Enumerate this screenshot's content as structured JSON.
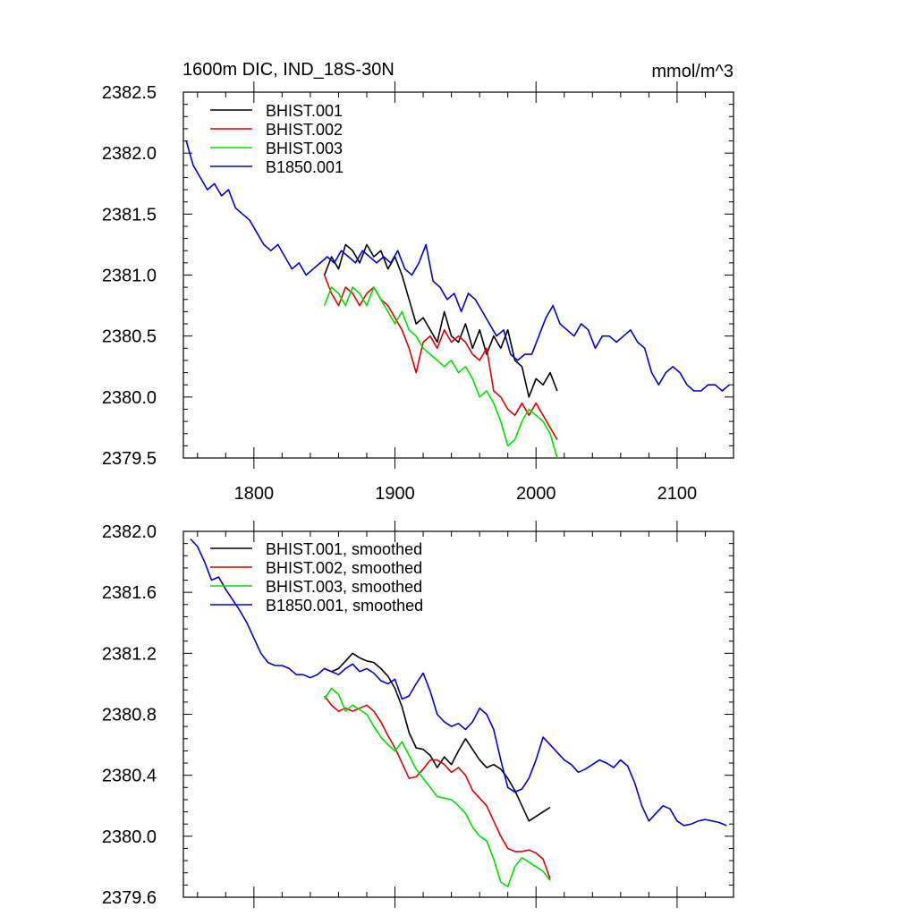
{
  "colors": {
    "BHIST.001": "#000000",
    "BHIST.002": "#e00000",
    "BHIST.003": "#00e000",
    "B1850.001": "#0000d0"
  },
  "chart_data": [
    {
      "type": "line",
      "title": "1600m DIC, IND_18S-30N",
      "units": "mmol/m^3",
      "xlim": [
        1750,
        2140
      ],
      "ylim": [
        2379.5,
        2382.5
      ],
      "xticks": [
        1800,
        1900,
        2000,
        2100
      ],
      "yticks": [
        2379.5,
        2380.0,
        2380.5,
        2381.0,
        2381.5,
        2382.0,
        2382.5
      ],
      "ytick_labels": [
        "2379.5",
        "2380.0",
        "2380.5",
        "2381.0",
        "2381.5",
        "2382.0",
        "2382.5"
      ],
      "xtick_labels": [
        "1800",
        "1900",
        "2000",
        "2100"
      ],
      "legend": "top-left",
      "grid": false,
      "series": [
        {
          "name": "BHIST.001",
          "x": [
            1850,
            1855,
            1860,
            1865,
            1870,
            1875,
            1880,
            1885,
            1890,
            1895,
            1900,
            1905,
            1910,
            1915,
            1920,
            1925,
            1930,
            1935,
            1940,
            1945,
            1950,
            1955,
            1960,
            1965,
            1970,
            1975,
            1980,
            1985,
            1990,
            1995,
            2000,
            2005,
            2010,
            2015
          ],
          "y": [
            2381.0,
            2381.15,
            2381.05,
            2381.25,
            2381.2,
            2381.1,
            2381.25,
            2381.15,
            2381.2,
            2381.05,
            2381.15,
            2381.0,
            2380.8,
            2380.6,
            2380.65,
            2380.55,
            2380.45,
            2380.7,
            2380.5,
            2380.45,
            2380.6,
            2380.4,
            2380.55,
            2380.35,
            2380.5,
            2380.4,
            2380.55,
            2380.3,
            2380.25,
            2380.0,
            2380.15,
            2380.1,
            2380.2,
            2380.05
          ]
        },
        {
          "name": "BHIST.002",
          "x": [
            1850,
            1855,
            1860,
            1865,
            1870,
            1875,
            1880,
            1885,
            1890,
            1895,
            1900,
            1905,
            1910,
            1915,
            1920,
            1925,
            1930,
            1935,
            1940,
            1945,
            1950,
            1955,
            1960,
            1965,
            1970,
            1975,
            1980,
            1985,
            1990,
            1995,
            2000,
            2005,
            2010,
            2015
          ],
          "y": [
            2381.0,
            2380.85,
            2380.75,
            2380.9,
            2380.85,
            2380.75,
            2380.85,
            2380.9,
            2380.8,
            2380.75,
            2380.65,
            2380.55,
            2380.4,
            2380.2,
            2380.45,
            2380.5,
            2380.4,
            2380.55,
            2380.45,
            2380.5,
            2380.45,
            2380.35,
            2380.3,
            2380.4,
            2380.05,
            2380.0,
            2379.9,
            2379.85,
            2379.95,
            2379.85,
            2379.95,
            2379.85,
            2379.75,
            2379.65
          ]
        },
        {
          "name": "BHIST.003",
          "x": [
            1850,
            1855,
            1860,
            1865,
            1870,
            1875,
            1880,
            1885,
            1890,
            1895,
            1900,
            1905,
            1910,
            1915,
            1920,
            1925,
            1930,
            1935,
            1940,
            1945,
            1950,
            1955,
            1960,
            1965,
            1970,
            1975,
            1980,
            1985,
            1990,
            1995,
            2000,
            2005,
            2010,
            2015
          ],
          "y": [
            2380.75,
            2380.9,
            2380.85,
            2380.75,
            2380.9,
            2380.85,
            2380.75,
            2380.9,
            2380.8,
            2380.7,
            2380.6,
            2380.7,
            2380.55,
            2380.5,
            2380.4,
            2380.35,
            2380.3,
            2380.25,
            2380.3,
            2380.2,
            2380.25,
            2380.15,
            2380.0,
            2380.05,
            2379.95,
            2379.8,
            2379.6,
            2379.65,
            2379.8,
            2379.9,
            2379.85,
            2379.8,
            2379.7,
            2379.5
          ]
        },
        {
          "name": "B1850.001",
          "x": [
            1752,
            1757,
            1762,
            1767,
            1772,
            1777,
            1782,
            1787,
            1792,
            1797,
            1802,
            1807,
            1812,
            1817,
            1822,
            1827,
            1832,
            1837,
            1842,
            1847,
            1852,
            1857,
            1862,
            1867,
            1872,
            1877,
            1882,
            1887,
            1892,
            1897,
            1902,
            1907,
            1912,
            1917,
            1922,
            1927,
            1932,
            1937,
            1942,
            1947,
            1952,
            1957,
            1962,
            1967,
            1972,
            1977,
            1982,
            1987,
            1992,
            1997,
            2002,
            2007,
            2012,
            2017,
            2022,
            2027,
            2032,
            2037,
            2042,
            2047,
            2052,
            2057,
            2062,
            2067,
            2072,
            2077,
            2082,
            2087,
            2092,
            2097,
            2102,
            2107,
            2112,
            2117,
            2122,
            2127,
            2132,
            2137
          ],
          "y": [
            2382.1,
            2381.9,
            2381.8,
            2381.7,
            2381.75,
            2381.65,
            2381.7,
            2381.55,
            2381.5,
            2381.45,
            2381.35,
            2381.25,
            2381.2,
            2381.25,
            2381.15,
            2381.05,
            2381.1,
            2381.0,
            2381.05,
            2381.1,
            2381.15,
            2381.1,
            2381.2,
            2381.15,
            2381.1,
            2381.2,
            2381.15,
            2381.1,
            2381.15,
            2381.1,
            2381.2,
            2381.05,
            2381.0,
            2381.1,
            2381.25,
            2380.95,
            2380.9,
            2380.8,
            2380.85,
            2380.7,
            2380.85,
            2380.8,
            2380.7,
            2380.6,
            2380.5,
            2380.55,
            2380.35,
            2380.3,
            2380.35,
            2380.35,
            2380.5,
            2380.65,
            2380.75,
            2380.6,
            2380.55,
            2380.5,
            2380.6,
            2380.55,
            2380.4,
            2380.5,
            2380.5,
            2380.45,
            2380.5,
            2380.55,
            2380.45,
            2380.4,
            2380.2,
            2380.1,
            2380.2,
            2380.25,
            2380.2,
            2380.1,
            2380.05,
            2380.05,
            2380.1,
            2380.1,
            2380.05,
            2380.1
          ]
        }
      ]
    },
    {
      "type": "line",
      "xlim": [
        1750,
        2140
      ],
      "ylim": [
        2379.6,
        2382.0
      ],
      "xticks": [
        1800,
        1900,
        2000,
        2100
      ],
      "yticks": [
        2379.6,
        2380.0,
        2380.4,
        2380.8,
        2381.2,
        2381.6,
        2382.0
      ],
      "ytick_labels": [
        "2379.6",
        "2380.0",
        "2380.4",
        "2380.8",
        "2381.2",
        "2381.6",
        "2382.0"
      ],
      "legend": "top-left",
      "grid": false,
      "series": [
        {
          "name": "BHIST.001, smoothed",
          "x": [
            1850,
            1855,
            1860,
            1865,
            1870,
            1875,
            1880,
            1885,
            1890,
            1895,
            1900,
            1905,
            1910,
            1915,
            1920,
            1925,
            1930,
            1935,
            1940,
            1945,
            1950,
            1955,
            1960,
            1965,
            1970,
            1975,
            1980,
            1985,
            1990,
            1995,
            2000,
            2005,
            2010
          ],
          "y": [
            2381.1,
            2381.08,
            2381.1,
            2381.15,
            2381.2,
            2381.17,
            2381.15,
            2381.14,
            2381.1,
            2381.05,
            2380.97,
            2380.85,
            2380.68,
            2380.58,
            2380.57,
            2380.53,
            2380.45,
            2380.52,
            2380.47,
            2380.56,
            2380.64,
            2380.57,
            2380.5,
            2380.45,
            2380.47,
            2380.44,
            2380.38,
            2380.3,
            2380.2,
            2380.1,
            2380.13,
            2380.16,
            2380.19
          ]
        },
        {
          "name": "BHIST.002, smoothed",
          "x": [
            1850,
            1855,
            1860,
            1865,
            1870,
            1875,
            1880,
            1885,
            1890,
            1895,
            1900,
            1905,
            1910,
            1915,
            1920,
            1925,
            1930,
            1935,
            1940,
            1945,
            1950,
            1955,
            1960,
            1965,
            1970,
            1975,
            1980,
            1985,
            1990,
            1995,
            2000,
            2005,
            2010
          ],
          "y": [
            2380.92,
            2380.86,
            2380.82,
            2380.84,
            2380.82,
            2380.84,
            2380.86,
            2380.82,
            2380.75,
            2380.66,
            2380.58,
            2380.48,
            2380.38,
            2380.39,
            2380.44,
            2380.5,
            2380.5,
            2380.47,
            2380.42,
            2380.45,
            2380.4,
            2380.3,
            2380.25,
            2380.2,
            2380.1,
            2380.0,
            2379.92,
            2379.9,
            2379.9,
            2379.91,
            2379.89,
            2379.85,
            2379.72
          ]
        },
        {
          "name": "BHIST.003, smoothed",
          "x": [
            1850,
            1855,
            1860,
            1865,
            1870,
            1875,
            1880,
            1885,
            1890,
            1895,
            1900,
            1905,
            1910,
            1915,
            1920,
            1925,
            1930,
            1935,
            1940,
            1945,
            1950,
            1955,
            1960,
            1965,
            1970,
            1975,
            1980,
            1985,
            1990,
            1995,
            2000,
            2005,
            2010
          ],
          "y": [
            2380.9,
            2380.97,
            2380.93,
            2380.82,
            2380.86,
            2380.83,
            2380.8,
            2380.72,
            2380.65,
            2380.6,
            2380.56,
            2380.62,
            2380.53,
            2380.44,
            2380.38,
            2380.32,
            2380.26,
            2380.25,
            2380.24,
            2380.2,
            2380.15,
            2380.06,
            2380.0,
            2379.97,
            2379.85,
            2379.7,
            2379.67,
            2379.8,
            2379.86,
            2379.83,
            2379.8,
            2379.77,
            2379.71
          ]
        },
        {
          "name": "B1850.001, smoothed",
          "x": [
            1755,
            1760,
            1765,
            1770,
            1775,
            1780,
            1785,
            1790,
            1795,
            1800,
            1805,
            1810,
            1815,
            1820,
            1825,
            1830,
            1835,
            1840,
            1845,
            1850,
            1855,
            1860,
            1865,
            1870,
            1875,
            1880,
            1885,
            1890,
            1895,
            1900,
            1905,
            1910,
            1915,
            1920,
            1925,
            1930,
            1935,
            1940,
            1945,
            1950,
            1955,
            1960,
            1965,
            1970,
            1975,
            1980,
            1985,
            1990,
            1995,
            2000,
            2005,
            2010,
            2015,
            2020,
            2025,
            2030,
            2035,
            2040,
            2045,
            2050,
            2055,
            2060,
            2065,
            2070,
            2075,
            2080,
            2085,
            2090,
            2095,
            2100,
            2105,
            2110,
            2115,
            2120,
            2125,
            2130,
            2135
          ],
          "y": [
            2381.95,
            2381.9,
            2381.8,
            2381.68,
            2381.7,
            2381.62,
            2381.55,
            2381.48,
            2381.4,
            2381.3,
            2381.2,
            2381.14,
            2381.12,
            2381.12,
            2381.1,
            2381.06,
            2381.06,
            2381.04,
            2381.06,
            2381.1,
            2381.08,
            2381.06,
            2381.1,
            2381.13,
            2381.08,
            2381.1,
            2381.07,
            2381.02,
            2381.0,
            2381.03,
            2380.9,
            2380.92,
            2381.0,
            2381.07,
            2380.95,
            2380.8,
            2380.75,
            2380.72,
            2380.74,
            2380.7,
            2380.75,
            2380.84,
            2380.8,
            2380.7,
            2380.5,
            2380.32,
            2380.29,
            2380.31,
            2380.38,
            2380.5,
            2380.65,
            2380.6,
            2380.55,
            2380.5,
            2380.47,
            2380.42,
            2380.44,
            2380.47,
            2380.5,
            2380.48,
            2380.45,
            2380.5,
            2380.46,
            2380.35,
            2380.2,
            2380.1,
            2380.15,
            2380.2,
            2380.18,
            2380.1,
            2380.07,
            2380.08,
            2380.1,
            2380.11,
            2380.1,
            2380.09,
            2380.07
          ]
        }
      ]
    }
  ]
}
